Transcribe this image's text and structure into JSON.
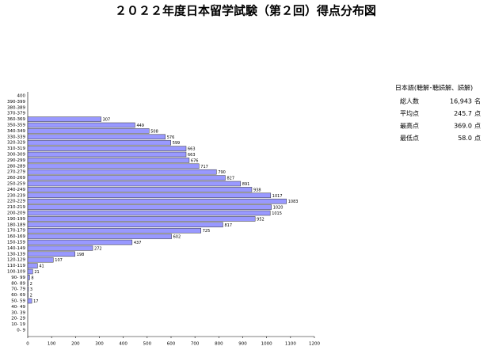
{
  "chart_data": {
    "type": "barh",
    "title": "２０２２年度日本留学試験（第２回）得点分布図",
    "categories": [
      "400",
      "390-399",
      "380-389",
      "370-379",
      "360-369",
      "350-359",
      "340-349",
      "330-339",
      "320-329",
      "310-319",
      "300-309",
      "290-299",
      "280-289",
      "270-279",
      "260-269",
      "250-259",
      "240-249",
      "230-239",
      "220-229",
      "210-219",
      "200-209",
      "190-199",
      "180-189",
      "170-179",
      "160-169",
      "150-159",
      "140-149",
      "130-139",
      "120-129",
      "110-119",
      "100-109",
      "90- 99",
      "80- 89",
      "70- 79",
      "60- 69",
      "50- 59",
      "40- 49",
      "30- 39",
      "20- 29",
      "10- 19",
      "0- 9"
    ],
    "values": [
      null,
      null,
      null,
      null,
      307,
      449,
      508,
      576,
      599,
      663,
      663,
      676,
      717,
      790,
      827,
      891,
      938,
      1017,
      1083,
      1020,
      1015,
      952,
      817,
      725,
      602,
      437,
      272,
      198,
      107,
      41,
      21,
      8,
      2,
      3,
      2,
      17,
      null,
      null,
      null,
      null,
      null
    ],
    "color": "#9999ff",
    "xlim": [
      0,
      1200
    ],
    "xticks": [
      0,
      100,
      200,
      300,
      400,
      500,
      600,
      700,
      800,
      900,
      1000,
      1100,
      1200
    ]
  },
  "stats": {
    "title": "日本語(聴解･聴読解、読解)",
    "rows": [
      [
        "総人数",
        "16,943",
        "名"
      ],
      [
        "平均点",
        "245.7",
        "点"
      ],
      [
        "最高点",
        "369.0",
        "点"
      ],
      [
        "最低点",
        "58.0",
        "点"
      ]
    ]
  }
}
